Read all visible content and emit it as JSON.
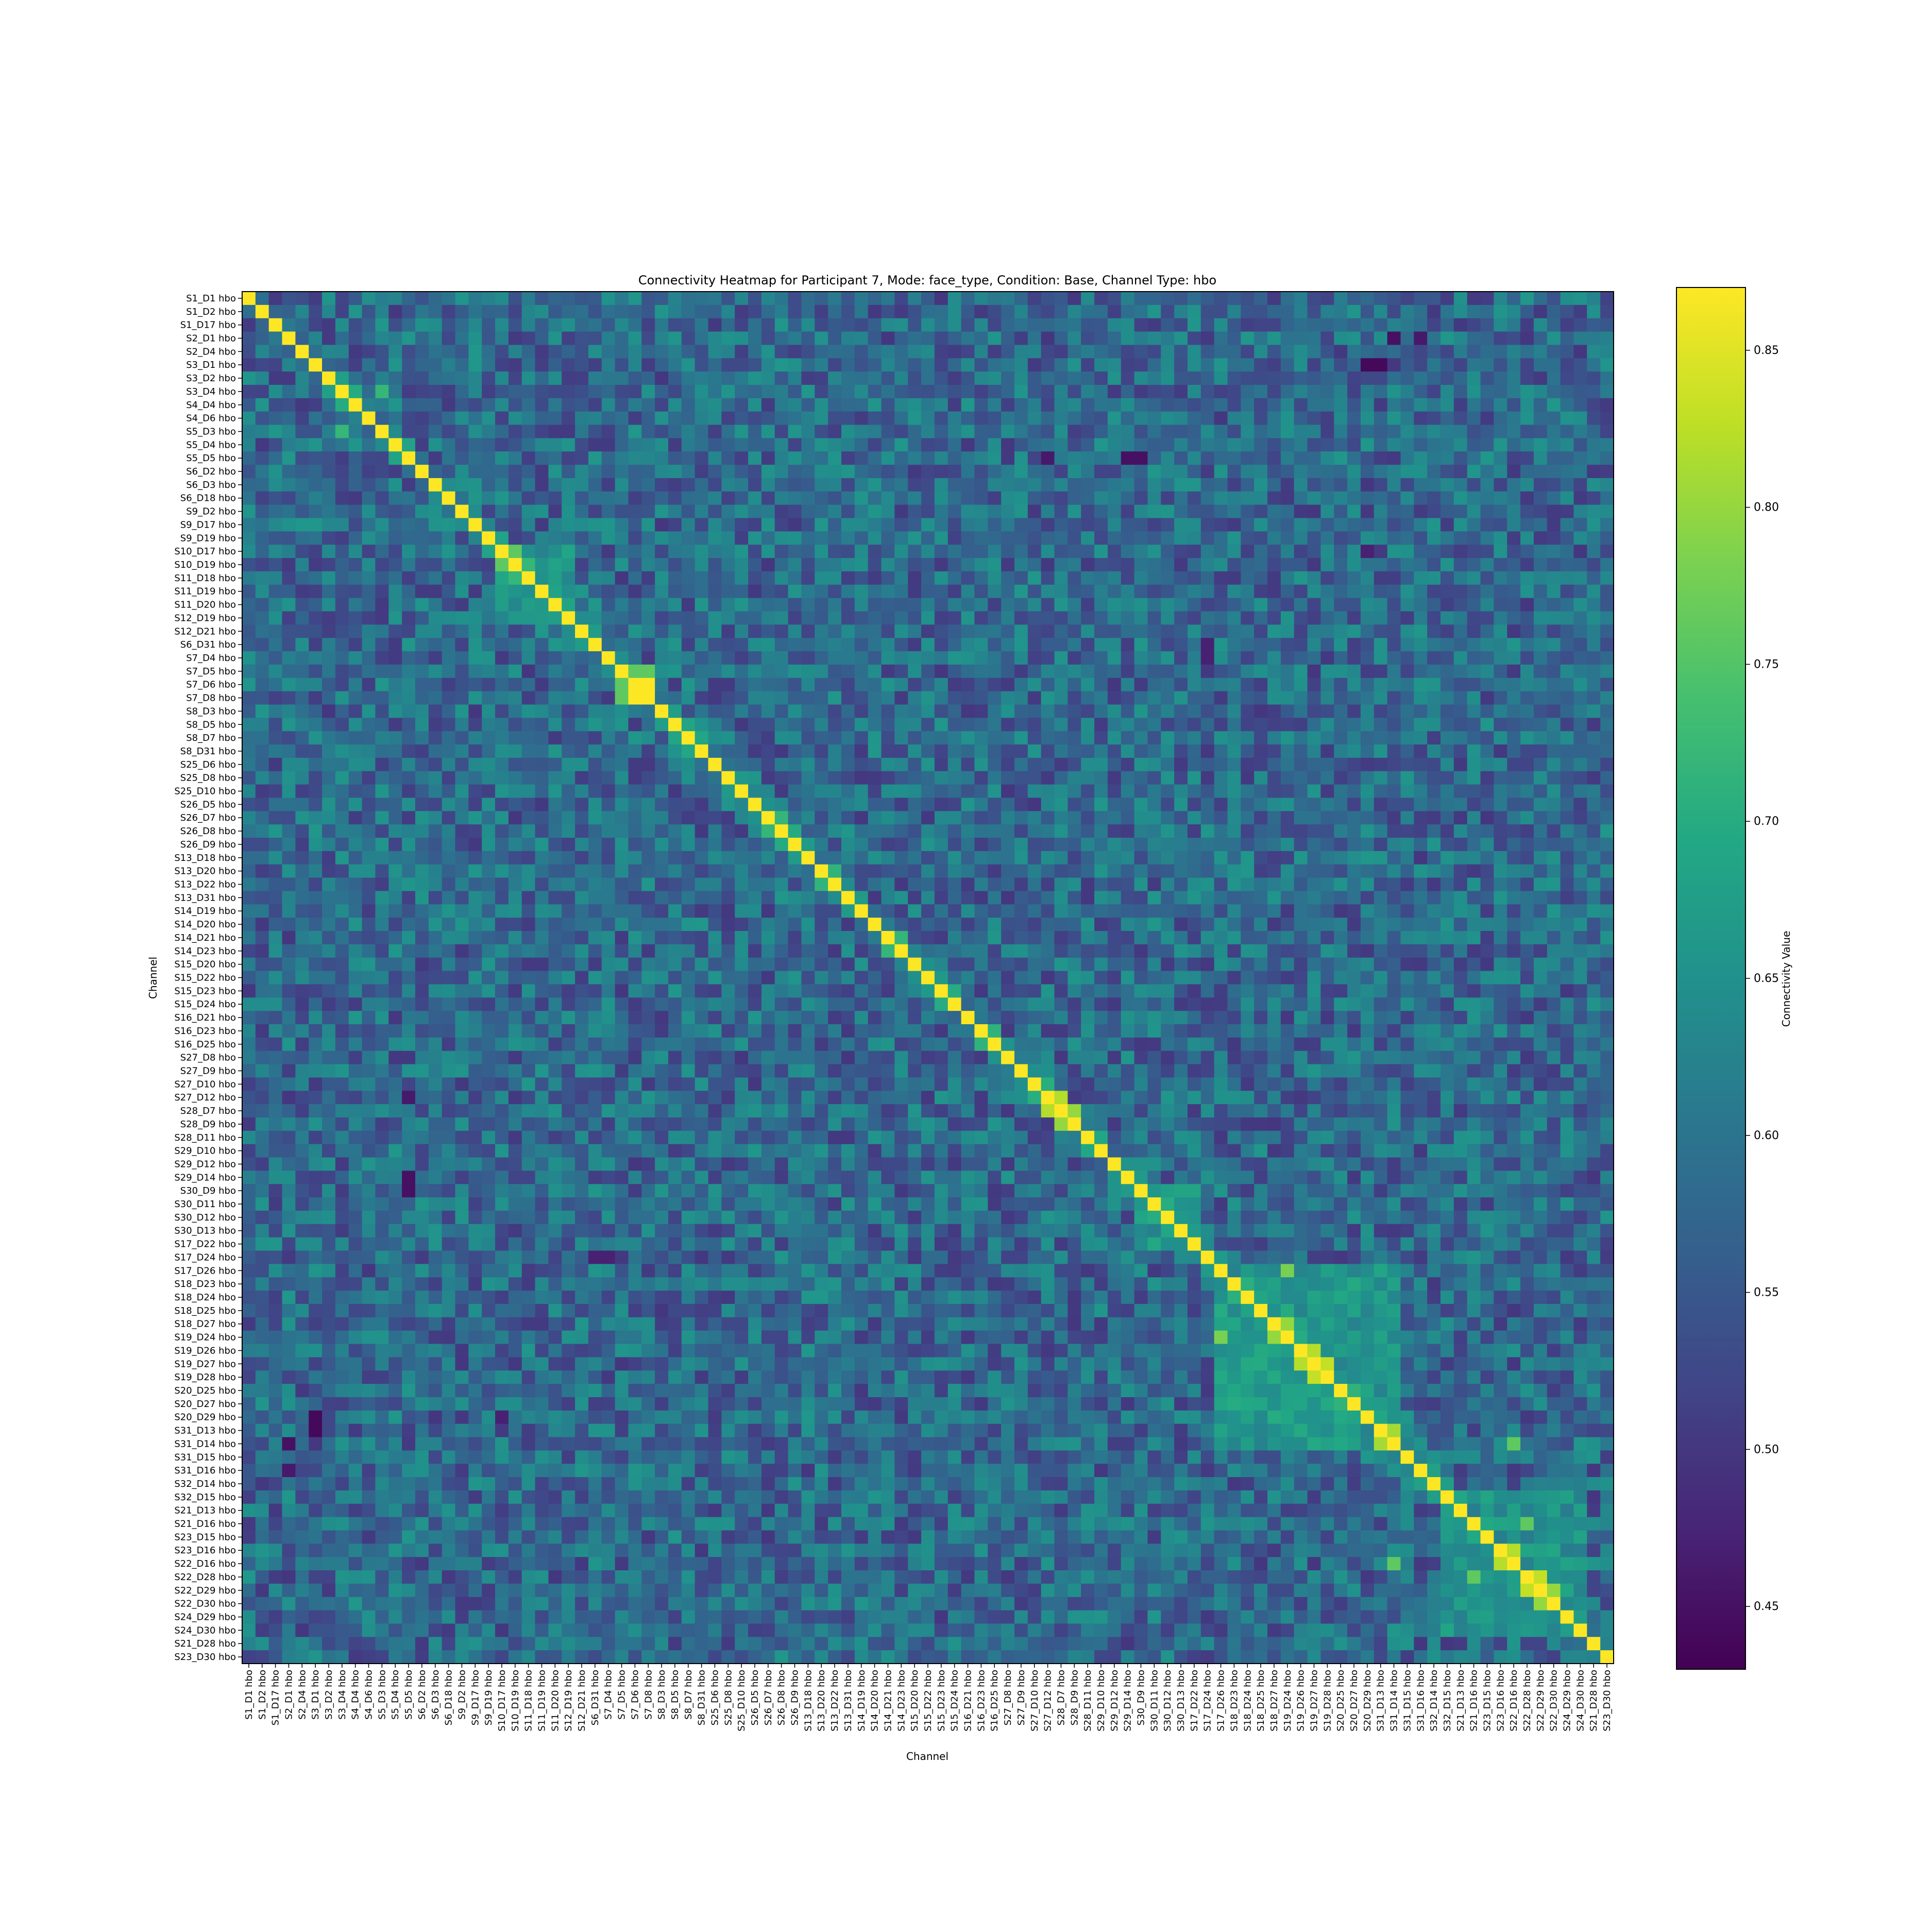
{
  "chart_data": {
    "type": "heatmap",
    "title": "Connectivity Heatmap for Participant 7, Mode: face_type, Condition: Base, Channel Type: hbo",
    "xlabel": "Channel",
    "ylabel": "Channel",
    "colorbar_label": "Connectivity Value",
    "colormap": "viridis",
    "vmin": 0.43,
    "vmax": 0.87,
    "colorbar_ticks": [
      0.45,
      0.5,
      0.55,
      0.6,
      0.65,
      0.7,
      0.75,
      0.8,
      0.85
    ],
    "channels": [
      "S1_D1 hbo",
      "S1_D2 hbo",
      "S1_D17 hbo",
      "S2_D1 hbo",
      "S2_D4 hbo",
      "S3_D1 hbo",
      "S3_D2 hbo",
      "S3_D4 hbo",
      "S4_D4 hbo",
      "S4_D6 hbo",
      "S5_D3 hbo",
      "S5_D4 hbo",
      "S5_D5 hbo",
      "S6_D2 hbo",
      "S6_D3 hbo",
      "S6_D18 hbo",
      "S9_D2 hbo",
      "S9_D17 hbo",
      "S9_D19 hbo",
      "S10_D17 hbo",
      "S10_D19 hbo",
      "S11_D18 hbo",
      "S11_D19 hbo",
      "S11_D20 hbo",
      "S12_D19 hbo",
      "S12_D21 hbo",
      "S6_D31 hbo",
      "S7_D4 hbo",
      "S7_D5 hbo",
      "S7_D6 hbo",
      "S7_D8 hbo",
      "S8_D3 hbo",
      "S8_D5 hbo",
      "S8_D7 hbo",
      "S8_D31 hbo",
      "S25_D6 hbo",
      "S25_D8 hbo",
      "S25_D10 hbo",
      "S26_D5 hbo",
      "S26_D7 hbo",
      "S26_D8 hbo",
      "S26_D9 hbo",
      "S13_D18 hbo",
      "S13_D20 hbo",
      "S13_D22 hbo",
      "S13_D31 hbo",
      "S14_D19 hbo",
      "S14_D20 hbo",
      "S14_D21 hbo",
      "S14_D23 hbo",
      "S15_D20 hbo",
      "S15_D22 hbo",
      "S15_D23 hbo",
      "S15_D24 hbo",
      "S16_D21 hbo",
      "S16_D23 hbo",
      "S16_D25 hbo",
      "S27_D8 hbo",
      "S27_D9 hbo",
      "S27_D10 hbo",
      "S27_D12 hbo",
      "S28_D7 hbo",
      "S28_D9 hbo",
      "S28_D11 hbo",
      "S29_D10 hbo",
      "S29_D12 hbo",
      "S29_D14 hbo",
      "S30_D9 hbo",
      "S30_D11 hbo",
      "S30_D12 hbo",
      "S30_D13 hbo",
      "S17_D22 hbo",
      "S17_D24 hbo",
      "S17_D26 hbo",
      "S18_D23 hbo",
      "S18_D24 hbo",
      "S18_D25 hbo",
      "S18_D27 hbo",
      "S19_D24 hbo",
      "S19_D26 hbo",
      "S19_D27 hbo",
      "S19_D28 hbo",
      "S20_D25 hbo",
      "S20_D27 hbo",
      "S20_D29 hbo",
      "S31_D13 hbo",
      "S31_D14 hbo",
      "S31_D15 hbo",
      "S31_D16 hbo",
      "S32_D14 hbo",
      "S32_D15 hbo",
      "S21_D13 hbo",
      "S21_D16 hbo",
      "S23_D15 hbo",
      "S23_D16 hbo",
      "S22_D16 hbo",
      "S22_D28 hbo",
      "S22_D29 hbo",
      "S22_D30 hbo",
      "S24_D29 hbo",
      "S24_D30 hbo",
      "S21_D28 hbo",
      "S23_D30 hbo"
    ],
    "diagonal_value": 0.87,
    "strong_pairs": [
      [
        29,
        30,
        0.87
      ],
      [
        60,
        61,
        0.82
      ],
      [
        61,
        62,
        0.8
      ],
      [
        85,
        86,
        0.81
      ],
      [
        81,
        80,
        0.83
      ],
      [
        79,
        80,
        0.82
      ],
      [
        94,
        95,
        0.82
      ],
      [
        96,
        97,
        0.83
      ],
      [
        97,
        98,
        0.8
      ],
      [
        7,
        10,
        0.72
      ],
      [
        19,
        20,
        0.76
      ],
      [
        20,
        21,
        0.72
      ],
      [
        28,
        29,
        0.76
      ],
      [
        28,
        30,
        0.76
      ],
      [
        77,
        78,
        0.8
      ],
      [
        73,
        78,
        0.78
      ],
      [
        86,
        95,
        0.76
      ],
      [
        92,
        96,
        0.76
      ]
    ],
    "bright_blocks": [
      {
        "rows": [
          73,
          86
        ],
        "cols": [
          73,
          86
        ],
        "level": 0.66
      },
      {
        "rows": [
          90,
          100
        ],
        "cols": [
          90,
          100
        ],
        "level": 0.65
      },
      {
        "rows": [
          67,
          71
        ],
        "cols": [
          67,
          71
        ],
        "level": 0.66
      },
      {
        "rows": [
          19,
          24
        ],
        "cols": [
          19,
          24
        ],
        "level": 0.66
      }
    ],
    "dark_cells": [
      [
        5,
        84,
        0.44
      ],
      [
        5,
        85,
        0.44
      ],
      [
        3,
        86,
        0.45
      ],
      [
        3,
        88,
        0.46
      ],
      [
        12,
        60,
        0.46
      ],
      [
        12,
        66,
        0.45
      ],
      [
        67,
        12,
        0.45
      ],
      [
        84,
        5,
        0.44
      ],
      [
        85,
        5,
        0.44
      ],
      [
        26,
        72,
        0.47
      ],
      [
        72,
        27,
        0.47
      ],
      [
        84,
        19,
        0.47
      ]
    ]
  }
}
